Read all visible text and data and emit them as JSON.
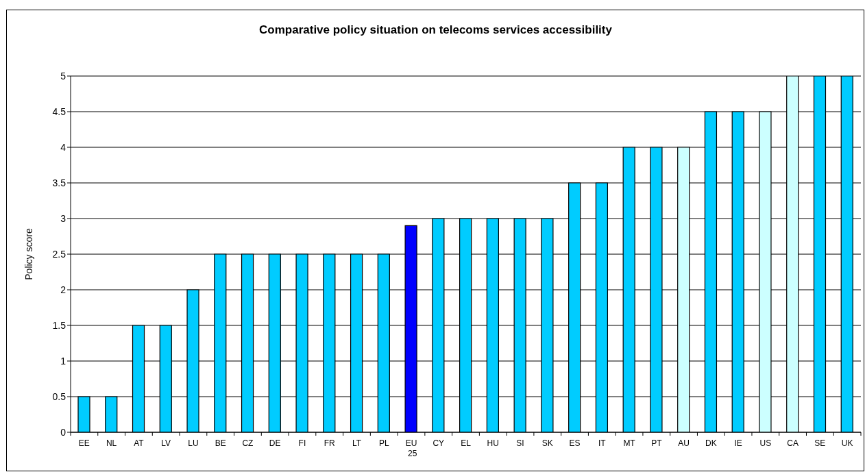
{
  "chart_data": {
    "type": "bar",
    "title": "Comparative policy situation on telecoms services accessibility",
    "ylabel": "Policy score",
    "categories": [
      "EE",
      "NL",
      "AT",
      "LV",
      "LU",
      "BE",
      "CZ",
      "DE",
      "FI",
      "FR",
      "LT",
      "PL",
      "EU 25",
      "CY",
      "EL",
      "HU",
      "SI",
      "SK",
      "ES",
      "IT",
      "MT",
      "PT",
      "AU",
      "DK",
      "IE",
      "US",
      "CA",
      "SE",
      "UK"
    ],
    "values": [
      0.5,
      0.5,
      1.5,
      1.5,
      2,
      2.5,
      2.5,
      2.5,
      2.5,
      2.5,
      2.5,
      2.5,
      2.9,
      3,
      3,
      3,
      3,
      3,
      3.5,
      3.5,
      4,
      4,
      4,
      4.5,
      4.5,
      4.5,
      5,
      5,
      5
    ],
    "colors": [
      "#00ccff",
      "#00ccff",
      "#00ccff",
      "#00ccff",
      "#00ccff",
      "#00ccff",
      "#00ccff",
      "#00ccff",
      "#00ccff",
      "#00ccff",
      "#00ccff",
      "#00ccff",
      "#0000ff",
      "#00ccff",
      "#00ccff",
      "#00ccff",
      "#00ccff",
      "#00ccff",
      "#00ccff",
      "#00ccff",
      "#00ccff",
      "#00ccff",
      "#ccffff",
      "#00ccff",
      "#00ccff",
      "#ccffff",
      "#ccffff",
      "#00ccff",
      "#00ccff"
    ],
    "ylim": [
      0,
      5
    ],
    "yticks": [
      0,
      0.5,
      1,
      1.5,
      2,
      2.5,
      3,
      3.5,
      4,
      4.5,
      5
    ],
    "grid": "y"
  }
}
